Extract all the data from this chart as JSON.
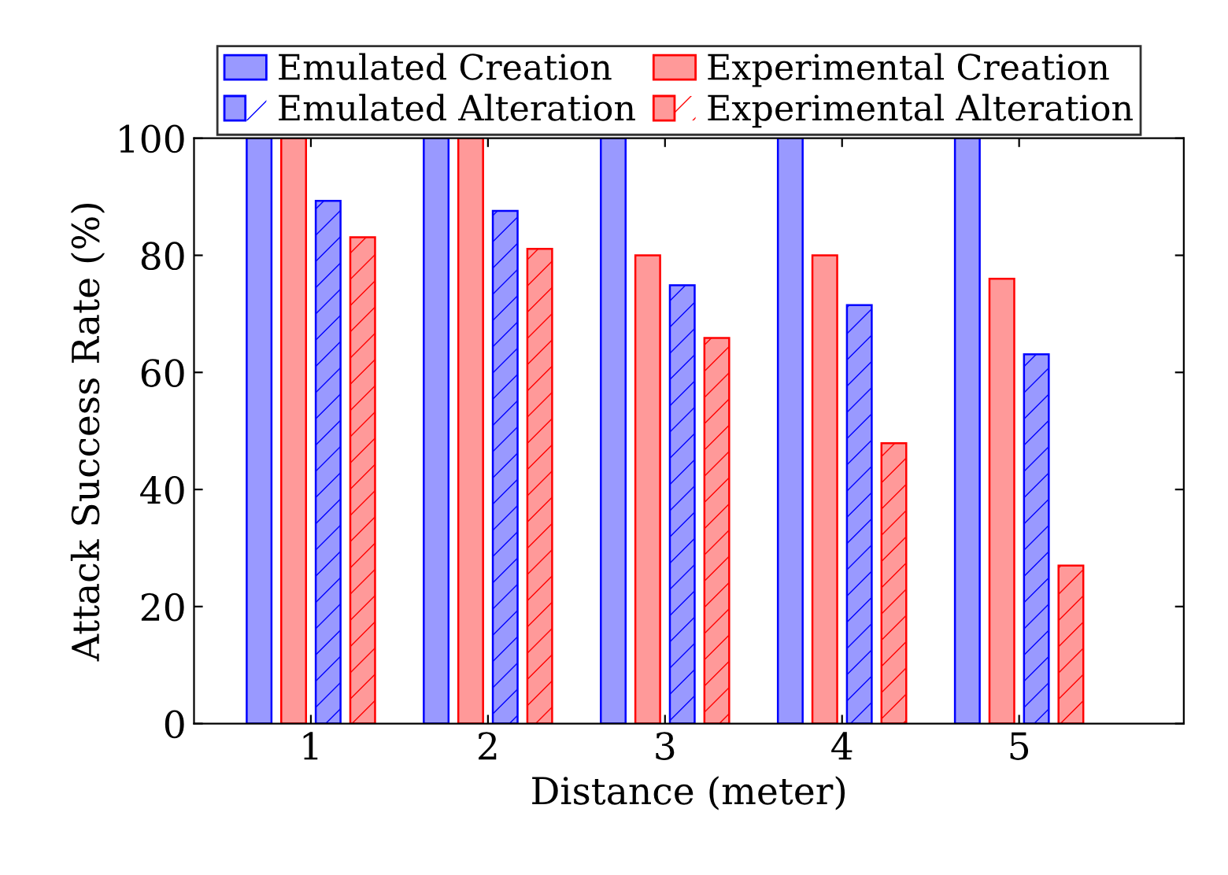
{
  "chart_data": {
    "type": "bar",
    "xlabel": "Distance (meter)",
    "ylabel": "Attack Success Rate (%)",
    "categories": [
      "1",
      "2",
      "3",
      "4",
      "5"
    ],
    "series": [
      {
        "name": "Emulated Creation",
        "color": "#9999ff",
        "values": [
          100,
          100,
          100,
          100,
          100
        ]
      },
      {
        "name": "Experimental Creation",
        "color": "#ff9999",
        "values": [
          100,
          100,
          80,
          80,
          76
        ]
      },
      {
        "name": "Emulated Alteration",
        "color": "#9999ff",
        "values": [
          89.3,
          87.6,
          74.9,
          71.5,
          63.1
        ]
      },
      {
        "name": "Experimental Alteration",
        "color": "#ff9999",
        "values": [
          83.1,
          81.1,
          65.9,
          47.9,
          27.0
        ]
      }
    ],
    "ylim": [
      0,
      100
    ],
    "yticks": [
      0,
      20,
      40,
      60,
      80,
      100
    ],
    "grid": false,
    "legend": "top"
  }
}
